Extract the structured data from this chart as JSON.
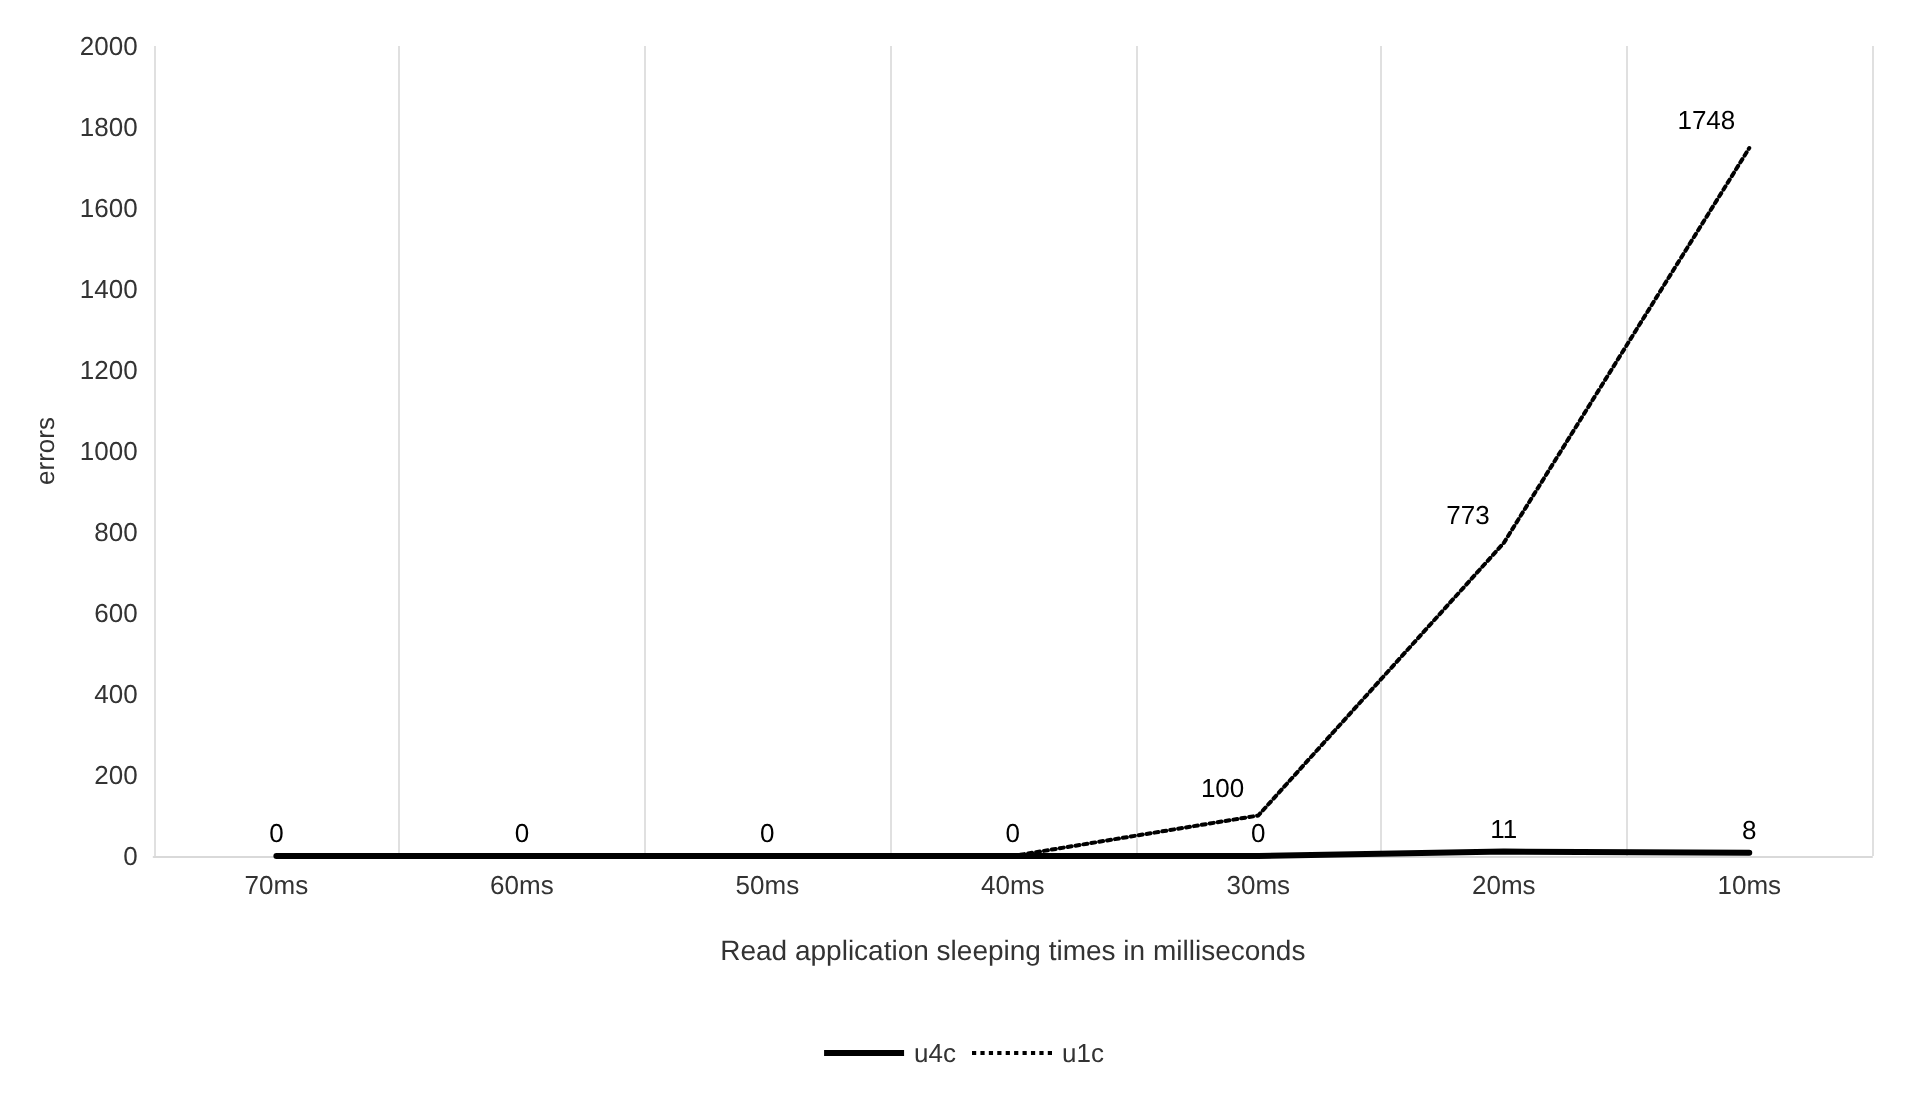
{
  "chart_data": {
    "type": "line",
    "xlabel": "Read application sleeping times in milliseconds",
    "ylabel": "errors",
    "categories": [
      "70ms",
      "60ms",
      "50ms",
      "40ms",
      "30ms",
      "20ms",
      "10ms"
    ],
    "series": [
      {
        "name": "u4c",
        "color": "#000000",
        "line_style": "solid",
        "values": [
          0,
          0,
          0,
          0,
          0,
          11,
          8
        ],
        "value_labels": [
          "0",
          "0",
          "0",
          "0",
          "0",
          "11",
          "8"
        ]
      },
      {
        "name": "u1c",
        "color": "#000000",
        "line_style": "dotted",
        "values": [
          0,
          0,
          0,
          0,
          100,
          773,
          1748
        ],
        "value_labels": [
          null,
          null,
          null,
          null,
          "100",
          "773",
          "1748"
        ]
      }
    ],
    "ylim": [
      0,
      2000
    ],
    "yticks": [
      0,
      200,
      400,
      600,
      800,
      1000,
      1200,
      1400,
      1600,
      1800,
      2000
    ],
    "grid": "x",
    "legend": "bottom",
    "marker": "none"
  }
}
